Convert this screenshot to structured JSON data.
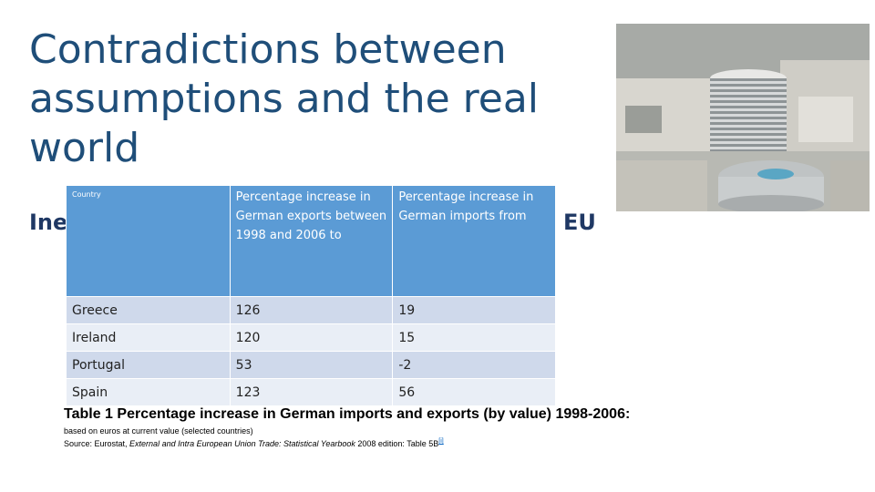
{
  "slide": {
    "title": "Contradictions between assumptions and the real world",
    "subtitle_left": "Ine",
    "subtitle_right": "EU"
  },
  "table": {
    "headers": [
      "Country",
      "Percentage increase in German exports between 1998 and 2006 to",
      "Percentage increase in German imports from"
    ],
    "rows": [
      [
        "Greece",
        "126",
        "19"
      ],
      [
        "Ireland",
        "120",
        "15"
      ],
      [
        "Portugal",
        "53",
        "-2"
      ],
      [
        "Spain",
        "123",
        "56"
      ]
    ]
  },
  "caption": "Table 1  Percentage increase in German imports and exports (by value) 1998-2006:",
  "note": {
    "line1": "based on euros at current value (selected countries)",
    "source_prefix": "Source: Eurostat, ",
    "source_title": "External and Intra European Union Trade: Statistical Yearbook",
    "source_suffix": " 2008 edition: Table 5B",
    "ref_mark": "[i]"
  },
  "colors": {
    "title": "#1f4e79",
    "header_bg": "#5b9bd5",
    "row_odd": "#cfd9eb",
    "row_even": "#e9eef6"
  }
}
